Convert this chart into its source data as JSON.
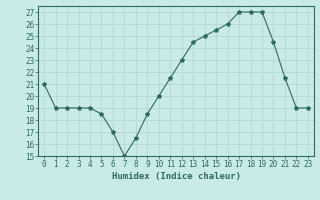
{
  "x": [
    0,
    1,
    2,
    3,
    4,
    5,
    6,
    7,
    8,
    9,
    10,
    11,
    12,
    13,
    14,
    15,
    16,
    17,
    18,
    19,
    20,
    21,
    22,
    23
  ],
  "y": [
    21,
    19,
    19,
    19,
    19,
    18.5,
    17,
    15,
    16.5,
    18.5,
    20,
    21.5,
    23,
    24.5,
    25,
    25.5,
    26,
    27,
    27,
    27,
    24.5,
    21.5,
    19,
    19
  ],
  "line_color": "#2e6b5e",
  "marker": "*",
  "marker_size": 3,
  "bg_color": "#c8eae8",
  "grid_color": "#b0d4d0",
  "xlabel": "Humidex (Indice chaleur)",
  "ylim": [
    15,
    27.5
  ],
  "yticks": [
    15,
    16,
    17,
    18,
    19,
    20,
    21,
    22,
    23,
    24,
    25,
    26,
    27
  ],
  "xticks": [
    0,
    1,
    2,
    3,
    4,
    5,
    6,
    7,
    8,
    9,
    10,
    11,
    12,
    13,
    14,
    15,
    16,
    17,
    18,
    19,
    20,
    21,
    22,
    23
  ],
  "xlim": [
    -0.5,
    23.5
  ],
  "tick_color": "#2e6b5e",
  "label_fontsize": 6.5,
  "tick_fontsize": 5.5
}
